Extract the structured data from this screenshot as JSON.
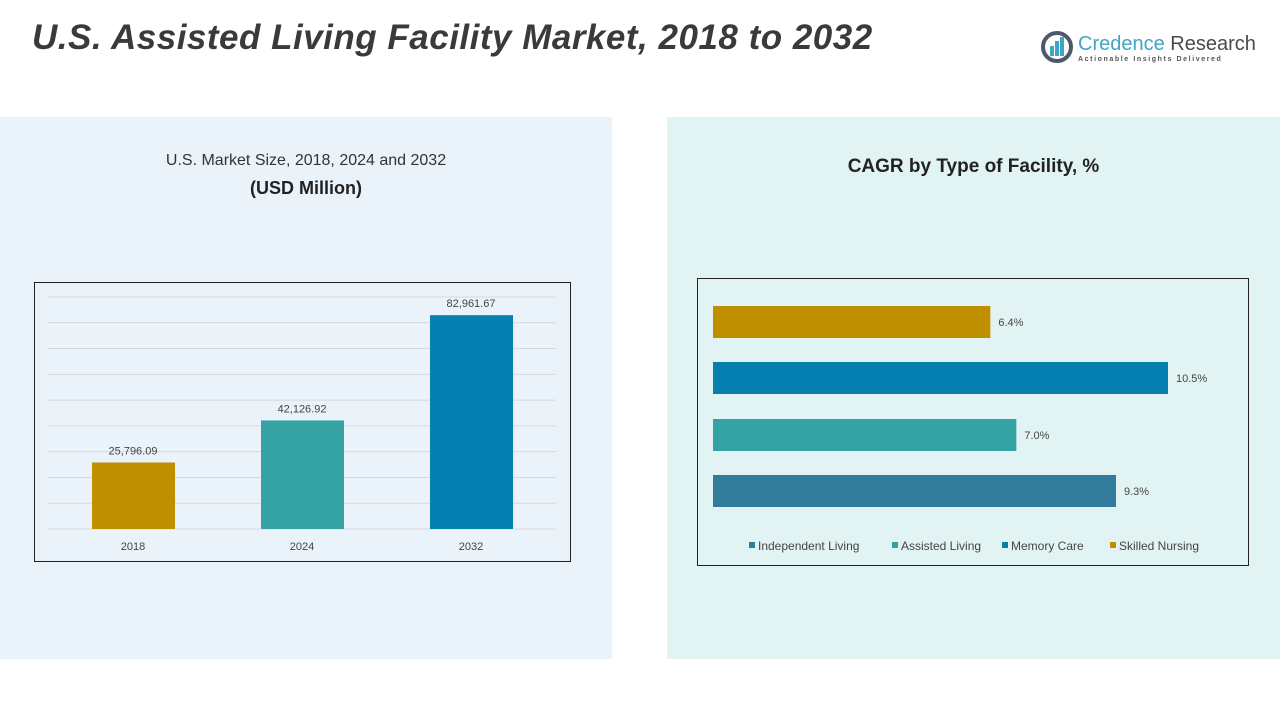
{
  "header": {
    "title": "U.S. Assisted Living Facility Market, 2018 to 2032"
  },
  "logo": {
    "name_part1": "Credence",
    "name_part2": "Research",
    "tagline": "Actionable Insights Delivered"
  },
  "chart_data": [
    {
      "type": "bar",
      "title": "U.S. Market Size, 2018, 2024 and 2032",
      "subtitle": "(USD Million)",
      "categories": [
        "2018",
        "2024",
        "2032"
      ],
      "values": [
        25796.09,
        42126.92,
        82961.67
      ],
      "labels": [
        "25,796.09",
        "42,126.92",
        "82,961.67"
      ],
      "colors": [
        "#bf8f00",
        "#35a3a3",
        "#0580b0"
      ],
      "ylim": [
        0,
        90000
      ],
      "grid": true
    },
    {
      "type": "bar",
      "orientation": "horizontal",
      "title": "CAGR by Type of Facility, %",
      "categories": [
        "Skilled Nursing",
        "Memory Care",
        "Assisted Living",
        "Independent Living"
      ],
      "values": [
        6.4,
        10.5,
        7.0,
        9.3
      ],
      "labels": [
        "6.4%",
        "10.5%",
        "7.0%",
        "9.3%"
      ],
      "colors": [
        "#bf8f00",
        "#0580b0",
        "#35a3a3",
        "#327b9b"
      ],
      "xlim": [
        0,
        12
      ],
      "grid": false,
      "legend": {
        "position": "bottom",
        "entries": [
          "Independent Living",
          "Assisted Living",
          "Memory Care",
          "Skilled Nursing"
        ],
        "colors": [
          "#327b9b",
          "#35a3a3",
          "#0580b0",
          "#bf8f00"
        ]
      }
    }
  ]
}
